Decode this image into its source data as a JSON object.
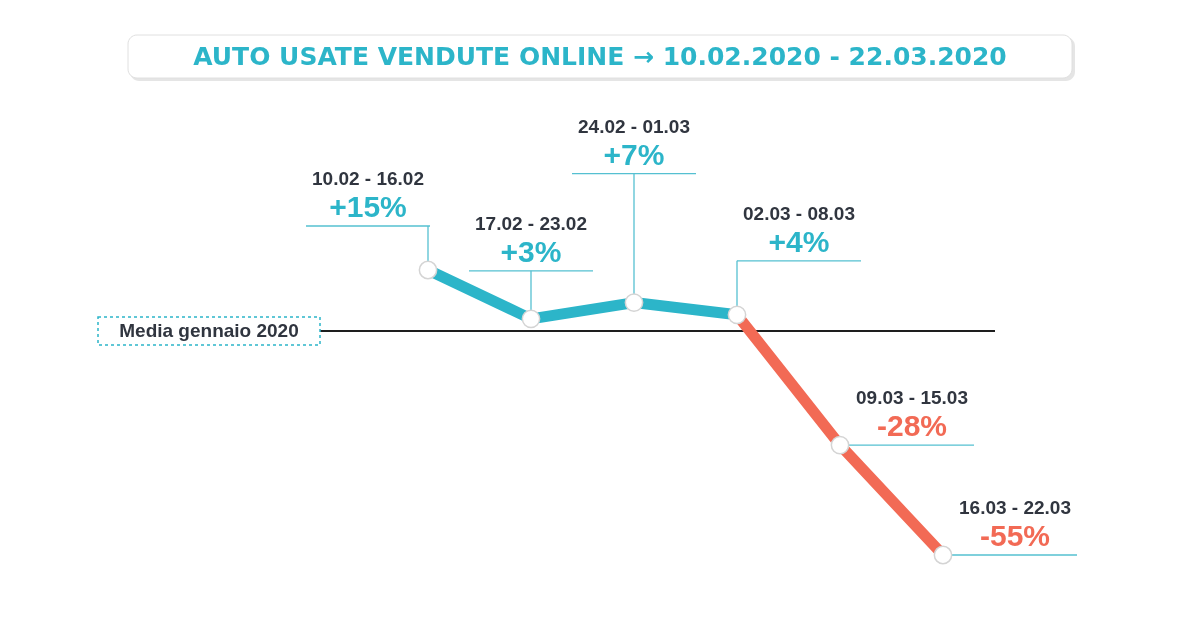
{
  "chart_data": {
    "type": "line",
    "title": "AUTO USATE VENDUTE ONLINE → 10.02.2020 - 22.03.2020",
    "categories": [
      null,
      null,
      null,
      null,
      null,
      null
    ],
    "series": [
      {
        "color": "#2cb5c9",
        "values": [
          15,
          3,
          7,
          4,
          null,
          null
        ],
        "value_labels": [
          "+15%",
          "+3%",
          "+7%",
          "+4%",
          null,
          null
        ]
      },
      {
        "color": "#f26a55",
        "values": [
          null,
          null,
          null,
          4,
          -28,
          -55
        ],
        "value_labels": [
          null,
          null,
          null,
          null,
          "-28%",
          "-55%"
        ]
      }
    ],
    "annotations": [
      "10.02 - 16.02",
      "17.02 - 23.02",
      "24.02 - 01.03",
      "02.03 - 08.03",
      "09.03 - 15.03",
      "16.03 - 22.03"
    ],
    "ref_lines": [
      {
        "axis": "y",
        "value": 0,
        "label": "Media gennaio 2020",
        "color": "#1e1e1e"
      }
    ],
    "marker": "circle",
    "tick_labels": false
  }
}
